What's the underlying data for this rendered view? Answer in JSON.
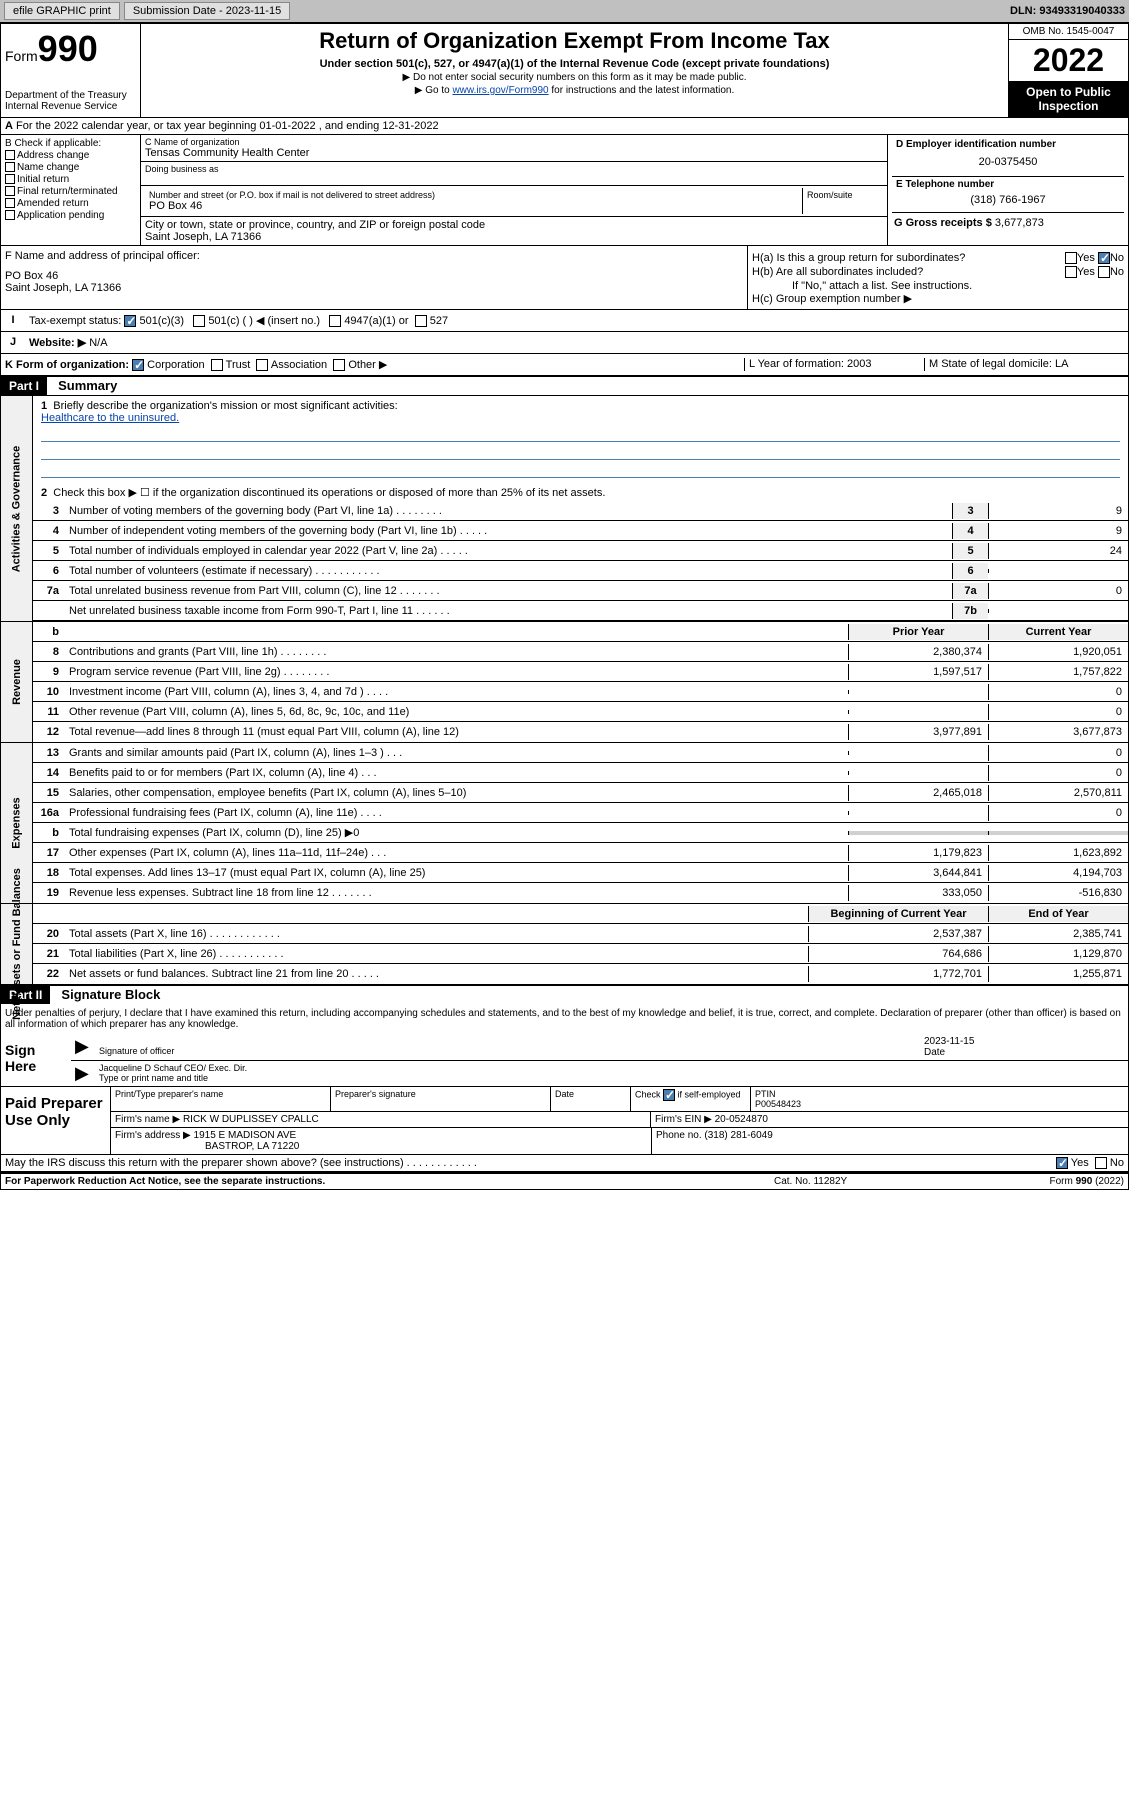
{
  "topbar": {
    "efile": "efile GRAPHIC print",
    "subdate_lbl": "Submission Date - 2023-11-15",
    "dln": "DLN: 93493319040333"
  },
  "header": {
    "form_lbl": "Form",
    "form_num": "990",
    "dept": "Department of the Treasury",
    "irs": "Internal Revenue Service",
    "title": "Return of Organization Exempt From Income Tax",
    "subtitle": "Under section 501(c), 527, or 4947(a)(1) of the Internal Revenue Code (except private foundations)",
    "note1": "▶ Do not enter social security numbers on this form as it may be made public.",
    "note2": "▶ Go to ",
    "link": "www.irs.gov/Form990",
    "note3": " for instructions and the latest information.",
    "omb": "OMB No. 1545-0047",
    "year": "2022",
    "open_pub": "Open to Public Inspection"
  },
  "sectionA": "For the 2022 calendar year, or tax year beginning 01-01-2022   , and ending 12-31-2022",
  "boxB": {
    "lbl": "B Check if applicable:",
    "items": [
      "Address change",
      "Name change",
      "Initial return",
      "Final return/terminated",
      "Amended return",
      "Application pending"
    ]
  },
  "boxC": {
    "name_lbl": "C Name of organization",
    "name": "Tensas Community Health Center",
    "dba_lbl": "Doing business as",
    "addr_lbl": "Number and street (or P.O. box if mail is not delivered to street address)",
    "addr": "PO Box 46",
    "room_lbl": "Room/suite",
    "city_lbl": "City or town, state or province, country, and ZIP or foreign postal code",
    "city": "Saint Joseph, LA  71366"
  },
  "boxD": {
    "lbl": "D Employer identification number",
    "val": "20-0375450"
  },
  "boxE": {
    "lbl": "E Telephone number",
    "val": "(318) 766-1967"
  },
  "boxG": {
    "lbl": "G Gross receipts $",
    "val": "3,677,873"
  },
  "boxF": {
    "lbl": "F Name and address of principal officer:",
    "addr1": "PO Box 46",
    "addr2": "Saint Joseph, LA  71366"
  },
  "boxH": {
    "ha": "H(a)  Is this a group return for subordinates?",
    "hb": "H(b)  Are all subordinates included?",
    "hb_note": "If \"No,\" attach a list. See instructions.",
    "hc": "H(c)  Group exemption number ▶"
  },
  "rowI": {
    "lbl": "Tax-exempt status:",
    "opt1": "501(c)(3)",
    "opt2": "501(c) (  ) ◀ (insert no.)",
    "opt3": "4947(a)(1) or",
    "opt4": "527"
  },
  "rowJ": {
    "lbl": "Website: ▶",
    "val": "N/A"
  },
  "rowK": {
    "lbl": "K Form of organization:",
    "opts": [
      "Corporation",
      "Trust",
      "Association",
      "Other ▶"
    ]
  },
  "rowL": "L Year of formation: 2003",
  "rowM": "M State of legal domicile: LA",
  "part1": {
    "hdr": "Part I",
    "title": "Summary",
    "line1": "Briefly describe the organization's mission or most significant activities:",
    "mission": "Healthcare to the uninsured.",
    "line2": "Check this box ▶ ☐  if the organization discontinued its operations or disposed of more than 25% of its net assets.",
    "sides": {
      "ag": "Activities & Governance",
      "rev": "Revenue",
      "exp": "Expenses",
      "na": "Net Assets or Fund Balances"
    },
    "cols": {
      "prior": "Prior Year",
      "current": "Current Year",
      "boy": "Beginning of Current Year",
      "eoy": "End of Year"
    },
    "rows": [
      {
        "n": "3",
        "t": "Number of voting members of the governing body (Part VI, line 1a)  .  .  .  .  .  .  .  .",
        "box": "3",
        "v2": "9"
      },
      {
        "n": "4",
        "t": "Number of independent voting members of the governing body (Part VI, line 1b)  .  .  .  .  .",
        "box": "4",
        "v2": "9"
      },
      {
        "n": "5",
        "t": "Total number of individuals employed in calendar year 2022 (Part V, line 2a)  .  .  .  .  .",
        "box": "5",
        "v2": "24"
      },
      {
        "n": "6",
        "t": "Total number of volunteers (estimate if necessary)  .  .  .  .  .  .  .  .  .  .  .",
        "box": "6",
        "v2": ""
      },
      {
        "n": "7a",
        "t": "Total unrelated business revenue from Part VIII, column (C), line 12  .  .  .  .  .  .  .",
        "box": "7a",
        "v2": "0"
      },
      {
        "n": "",
        "t": "Net unrelated business taxable income from Form 990-T, Part I, line 11  .  .  .  .  .  .",
        "box": "7b",
        "v2": ""
      }
    ],
    "rev_rows": [
      {
        "n": "8",
        "t": "Contributions and grants (Part VIII, line 1h)  .  .  .  .  .  .  .  .",
        "v1": "2,380,374",
        "v2": "1,920,051"
      },
      {
        "n": "9",
        "t": "Program service revenue (Part VIII, line 2g)  .  .  .  .  .  .  .  .",
        "v1": "1,597,517",
        "v2": "1,757,822"
      },
      {
        "n": "10",
        "t": "Investment income (Part VIII, column (A), lines 3, 4, and 7d )  .  .  .  .",
        "v1": "",
        "v2": "0"
      },
      {
        "n": "11",
        "t": "Other revenue (Part VIII, column (A), lines 5, 6d, 8c, 9c, 10c, and 11e)",
        "v1": "",
        "v2": "0"
      },
      {
        "n": "12",
        "t": "Total revenue—add lines 8 through 11 (must equal Part VIII, column (A), line 12)",
        "v1": "3,977,891",
        "v2": "3,677,873"
      }
    ],
    "exp_rows": [
      {
        "n": "13",
        "t": "Grants and similar amounts paid (Part IX, column (A), lines 1–3 )  .  .  .",
        "v1": "",
        "v2": "0"
      },
      {
        "n": "14",
        "t": "Benefits paid to or for members (Part IX, column (A), line 4)  .  .  .",
        "v1": "",
        "v2": "0"
      },
      {
        "n": "15",
        "t": "Salaries, other compensation, employee benefits (Part IX, column (A), lines 5–10)",
        "v1": "2,465,018",
        "v2": "2,570,811"
      },
      {
        "n": "16a",
        "t": "Professional fundraising fees (Part IX, column (A), line 11e)  .  .  .  .",
        "v1": "",
        "v2": "0"
      },
      {
        "n": "b",
        "t": "Total fundraising expenses (Part IX, column (D), line 25) ▶0",
        "v1": "",
        "v2": "",
        "shade": true
      },
      {
        "n": "17",
        "t": "Other expenses (Part IX, column (A), lines 11a–11d, 11f–24e)  .  .  .",
        "v1": "1,179,823",
        "v2": "1,623,892"
      },
      {
        "n": "18",
        "t": "Total expenses. Add lines 13–17 (must equal Part IX, column (A), line 25)",
        "v1": "3,644,841",
        "v2": "4,194,703"
      },
      {
        "n": "19",
        "t": "Revenue less expenses. Subtract line 18 from line 12  .  .  .  .  .  .  .",
        "v1": "333,050",
        "v2": "-516,830"
      }
    ],
    "na_rows": [
      {
        "n": "20",
        "t": "Total assets (Part X, line 16)  .  .  .  .  .  .  .  .  .  .  .  .",
        "v1": "2,537,387",
        "v2": "2,385,741"
      },
      {
        "n": "21",
        "t": "Total liabilities (Part X, line 26)  .  .  .  .  .  .  .  .  .  .  .",
        "v1": "764,686",
        "v2": "1,129,870"
      },
      {
        "n": "22",
        "t": "Net assets or fund balances. Subtract line 21 from line 20  .  .  .  .  .",
        "v1": "1,772,701",
        "v2": "1,255,871"
      }
    ]
  },
  "part2": {
    "hdr": "Part II",
    "title": "Signature Block",
    "decl": "Under penalties of perjury, I declare that I have examined this return, including accompanying schedules and statements, and to the best of my knowledge and belief, it is true, correct, and complete. Declaration of preparer (other than officer) is based on all information of which preparer has any knowledge.",
    "sign_here": "Sign Here",
    "sig_officer": "Signature of officer",
    "sig_date": "2023-11-15",
    "sig_date_lbl": "Date",
    "officer_name": "Jacqueline D Schauf CEO/ Exec. Dir.",
    "officer_lbl": "Type or print name and title",
    "paid_prep": "Paid Preparer Use Only",
    "prep_name_lbl": "Print/Type preparer's name",
    "prep_sig_lbl": "Preparer's signature",
    "date_lbl": "Date",
    "check_lbl": "Check ☑ if self-employed",
    "ptin_lbl": "PTIN",
    "ptin": "P00548423",
    "firm_name_lbl": "Firm's name    ▶",
    "firm_name": "RICK W DUPLISSEY CPALLC",
    "firm_ein_lbl": "Firm's EIN ▶",
    "firm_ein": "20-0524870",
    "firm_addr_lbl": "Firm's address ▶",
    "firm_addr1": "1915 E MADISON AVE",
    "firm_addr2": "BASTROP, LA  71220",
    "phone_lbl": "Phone no.",
    "phone": "(318) 281-6049",
    "discuss": "May the IRS discuss this return with the preparer shown above? (see instructions)  .  .  .  .  .  .  .  .  .  .  .  ."
  },
  "footer": {
    "paperwork": "For Paperwork Reduction Act Notice, see the separate instructions.",
    "cat": "Cat. No. 11282Y",
    "form": "Form 990 (2022)"
  }
}
